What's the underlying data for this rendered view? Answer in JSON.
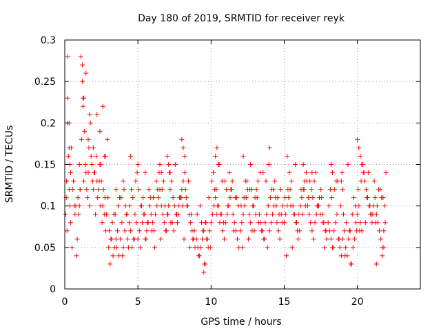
{
  "chart_data": {
    "type": "scatter",
    "title": "Day 180 of 2019, SRMTID for receiver reyk",
    "xlabel": "GPS time / hours",
    "ylabel": "SRMTID / TECUs",
    "xlim": [
      0,
      24.3
    ],
    "ylim": [
      0,
      0.3
    ],
    "x_ticks": [
      0,
      5,
      10,
      15,
      20
    ],
    "y_ticks": [
      0,
      0.05,
      0.1,
      0.15,
      0.2,
      0.25,
      0.3
    ],
    "x_tick_labels": [
      "0",
      "5",
      "10",
      "15",
      "20"
    ],
    "y_tick_labels": [
      "0",
      "0.05",
      "0.1",
      "0.15",
      "0.2",
      "0.25",
      "0.3"
    ],
    "grid": true,
    "marker": "plus",
    "marker_color": "#ff0000",
    "series": [
      {
        "x": [
          0.05,
          0.12,
          0.2,
          0.25,
          0.3,
          0.35,
          0.4,
          0.5,
          0.55,
          0.6,
          0.7,
          0.8,
          0.9,
          1.0,
          1.1,
          1.2,
          1.3,
          1.4,
          1.5,
          1.6,
          1.7,
          1.8,
          1.9,
          2.0,
          2.1,
          2.2,
          2.3,
          2.4,
          2.5,
          2.6,
          2.7,
          2.8,
          2.9,
          0.1,
          0.2,
          0.3,
          0.45,
          0.6,
          0.75,
          0.95,
          1.05,
          1.15,
          1.25,
          1.35,
          1.45,
          1.55,
          1.65,
          1.75,
          1.85,
          1.95,
          2.05,
          2.15,
          2.25,
          2.35,
          2.45,
          2.55,
          2.65,
          2.75,
          2.85,
          0.15,
          0.4,
          0.65,
          0.85,
          1.0,
          1.2,
          1.45,
          1.7,
          1.95,
          2.2,
          2.45,
          2.7,
          2.95,
          0.2,
          0.3,
          1.25,
          1.6,
          2.4,
          2.6,
          2.8,
          0.35,
          1.3,
          1.05,
          3.0,
          3.1,
          3.2,
          3.3,
          3.4,
          3.5,
          3.6,
          3.7,
          3.8,
          3.9,
          4.0,
          4.1,
          4.2,
          4.3,
          4.4,
          4.5,
          4.6,
          4.7,
          4.8,
          4.9,
          5.0,
          5.1,
          5.2,
          5.3,
          5.4,
          5.5,
          5.6,
          5.7,
          5.8,
          5.9,
          3.05,
          3.25,
          3.45,
          3.65,
          3.85,
          4.05,
          4.25,
          4.45,
          4.65,
          4.85,
          5.05,
          5.25,
          5.45,
          5.65,
          5.85,
          3.15,
          3.55,
          3.95,
          4.35,
          4.75,
          5.15,
          5.55,
          5.95,
          3.35,
          3.75,
          4.15,
          4.55,
          4.95,
          5.35,
          5.75,
          4.0,
          4.5,
          5.0,
          5.5,
          3.5,
          6.0,
          6.1,
          6.2,
          6.3,
          6.4,
          6.5,
          6.6,
          6.7,
          6.8,
          6.9,
          7.0,
          7.1,
          7.2,
          7.3,
          7.4,
          7.5,
          7.6,
          7.7,
          7.8,
          7.9,
          8.0,
          8.1,
          8.2,
          8.3,
          8.4,
          8.5,
          8.6,
          8.7,
          8.8,
          8.9,
          6.05,
          6.25,
          6.45,
          6.65,
          6.85,
          7.05,
          7.25,
          7.45,
          7.65,
          7.85,
          8.05,
          8.25,
          8.45,
          8.65,
          8.85,
          6.15,
          6.55,
          6.95,
          7.35,
          7.75,
          8.15,
          8.55,
          6.35,
          6.75,
          7.15,
          7.55,
          7.95,
          8.35,
          8.75,
          7.0,
          7.1,
          7.2,
          8.0,
          8.1,
          8.2,
          6.5,
          6.6,
          9.0,
          9.1,
          9.2,
          9.3,
          9.4,
          9.5,
          9.6,
          9.7,
          9.8,
          9.9,
          10.0,
          10.1,
          10.2,
          10.3,
          10.4,
          10.5,
          10.6,
          10.7,
          10.8,
          10.9,
          11.0,
          11.1,
          11.2,
          11.3,
          11.4,
          11.5,
          11.6,
          11.7,
          11.8,
          11.9,
          9.05,
          9.25,
          9.45,
          9.65,
          9.85,
          10.05,
          10.25,
          10.45,
          10.65,
          10.85,
          11.05,
          11.25,
          11.45,
          11.65,
          11.85,
          9.15,
          9.55,
          9.95,
          10.35,
          10.75,
          11.15,
          11.55,
          9.35,
          9.75,
          10.15,
          10.55,
          10.95,
          11.35,
          11.75,
          9.5,
          9.6,
          10.3,
          10.4,
          10.5,
          12.0,
          12.1,
          12.2,
          12.3,
          12.4,
          12.5,
          12.6,
          12.7,
          12.8,
          12.9,
          13.0,
          13.1,
          13.2,
          13.3,
          13.4,
          13.5,
          13.6,
          13.7,
          13.8,
          13.9,
          14.0,
          14.1,
          14.2,
          14.3,
          14.4,
          14.5,
          14.6,
          14.7,
          14.8,
          14.9,
          12.05,
          12.25,
          12.45,
          12.65,
          12.85,
          13.05,
          13.25,
          13.45,
          13.65,
          13.85,
          14.05,
          14.25,
          14.45,
          14.65,
          14.85,
          12.15,
          12.55,
          12.95,
          13.35,
          13.75,
          14.15,
          14.55,
          12.35,
          12.75,
          13.15,
          13.55,
          13.95,
          14.35,
          14.75,
          12.2,
          12.7,
          14.0,
          15.0,
          15.1,
          15.2,
          15.3,
          15.4,
          15.5,
          15.6,
          15.7,
          15.8,
          15.9,
          16.0,
          16.1,
          16.2,
          16.3,
          16.4,
          16.5,
          16.6,
          16.7,
          16.8,
          16.9,
          17.0,
          17.1,
          17.2,
          17.3,
          17.4,
          17.5,
          17.6,
          17.7,
          17.8,
          17.9,
          15.05,
          15.25,
          15.45,
          15.65,
          15.85,
          16.05,
          16.25,
          16.45,
          16.65,
          16.85,
          17.05,
          17.25,
          17.45,
          17.65,
          17.85,
          15.15,
          15.55,
          15.95,
          16.35,
          16.75,
          17.15,
          17.55,
          15.35,
          15.75,
          16.15,
          16.55,
          16.95,
          17.35,
          17.75,
          15.2,
          16.3,
          16.9,
          18.0,
          18.1,
          18.2,
          18.3,
          18.4,
          18.5,
          18.6,
          18.7,
          18.8,
          18.9,
          19.0,
          19.1,
          19.2,
          19.3,
          19.4,
          19.5,
          19.6,
          19.7,
          19.8,
          19.9,
          18.05,
          18.25,
          18.45,
          18.65,
          18.85,
          19.05,
          19.25,
          19.45,
          19.65,
          19.85,
          18.15,
          18.55,
          18.95,
          19.35,
          19.75,
          18.35,
          18.75,
          19.15,
          19.55,
          19.95,
          18.2,
          18.3,
          18.9,
          19.0,
          20.0,
          20.1,
          20.2,
          20.3,
          20.4,
          20.5,
          20.6,
          20.7,
          20.8,
          20.9,
          21.0,
          21.1,
          21.2,
          21.3,
          21.4,
          21.5,
          21.6,
          21.7,
          21.8,
          21.9,
          20.05,
          20.25,
          20.45,
          20.65,
          20.85,
          21.05,
          21.25,
          21.45,
          21.65,
          21.85,
          20.15,
          20.55,
          20.95,
          21.35,
          21.75,
          20.35,
          20.75,
          21.15,
          21.55,
          21.95,
          20.0,
          20.1,
          20.2,
          20.3,
          21.3,
          21.7,
          21.8
        ],
        "y": [
          0.09,
          0.13,
          0.28,
          0.16,
          0.12,
          0.1,
          0.14,
          0.05,
          0.12,
          0.13,
          0.09,
          0.04,
          0.11,
          0.1,
          0.28,
          0.25,
          0.23,
          0.15,
          0.12,
          0.18,
          0.1,
          0.16,
          0.13,
          0.14,
          0.09,
          0.21,
          0.12,
          0.15,
          0.13,
          0.1,
          0.09,
          0.07,
          0.18,
          0.11,
          0.23,
          0.2,
          0.17,
          0.13,
          0.1,
          0.09,
          0.12,
          0.18,
          0.22,
          0.19,
          0.14,
          0.11,
          0.17,
          0.2,
          0.15,
          0.12,
          0.14,
          0.16,
          0.11,
          0.13,
          0.1,
          0.08,
          0.12,
          0.11,
          0.09,
          0.07,
          0.08,
          0.1,
          0.06,
          0.15,
          0.27,
          0.26,
          0.21,
          0.17,
          0.13,
          0.15,
          0.16,
          0.11,
          0.2,
          0.17,
          0.23,
          0.14,
          0.19,
          0.22,
          0.16,
          0.15,
          0.13,
          0.12,
          0.05,
          0.03,
          0.06,
          0.04,
          0.05,
          0.06,
          0.07,
          0.04,
          0.06,
          0.08,
          0.05,
          0.07,
          0.09,
          0.06,
          0.08,
          0.07,
          0.05,
          0.06,
          0.09,
          0.08,
          0.06,
          0.07,
          0.1,
          0.08,
          0.09,
          0.06,
          0.07,
          0.08,
          0.1,
          0.09,
          0.07,
          0.08,
          0.09,
          0.1,
          0.11,
          0.12,
          0.09,
          0.1,
          0.11,
          0.13,
          0.12,
          0.1,
          0.09,
          0.08,
          0.11,
          0.06,
          0.05,
          0.04,
          0.05,
          0.06,
          0.05,
          0.06,
          0.07,
          0.09,
          0.11,
          0.1,
          0.12,
          0.14,
          0.11,
          0.12,
          0.13,
          0.16,
          0.15,
          0.14,
          0.12,
          0.08,
          0.07,
          0.09,
          0.1,
          0.11,
          0.12,
          0.1,
          0.09,
          0.08,
          0.07,
          0.09,
          0.1,
          0.12,
          0.13,
          0.11,
          0.1,
          0.09,
          0.08,
          0.1,
          0.11,
          0.12,
          0.13,
          0.14,
          0.11,
          0.1,
          0.09,
          0.08,
          0.07,
          0.06,
          0.05,
          0.11,
          0.13,
          0.14,
          0.12,
          0.1,
          0.09,
          0.08,
          0.07,
          0.09,
          0.11,
          0.1,
          0.12,
          0.13,
          0.09,
          0.07,
          0.05,
          0.06,
          0.07,
          0.08,
          0.09,
          0.06,
          0.05,
          0.12,
          0.13,
          0.14,
          0.15,
          0.11,
          0.1,
          0.06,
          0.16,
          0.15,
          0.14,
          0.18,
          0.17,
          0.16,
          0.15,
          0.14,
          0.06,
          0.05,
          0.04,
          0.05,
          0.06,
          0.07,
          0.08,
          0.06,
          0.05,
          0.07,
          0.08,
          0.09,
          0.1,
          0.11,
          0.09,
          0.1,
          0.08,
          0.09,
          0.07,
          0.06,
          0.08,
          0.09,
          0.1,
          0.11,
          0.12,
          0.09,
          0.08,
          0.07,
          0.06,
          0.05,
          0.09,
          0.1,
          0.07,
          0.08,
          0.11,
          0.13,
          0.12,
          0.1,
          0.09,
          0.08,
          0.12,
          0.14,
          0.13,
          0.11,
          0.1,
          0.04,
          0.03,
          0.05,
          0.12,
          0.13,
          0.1,
          0.07,
          0.08,
          0.06,
          0.14,
          0.15,
          0.13,
          0.12,
          0.11,
          0.02,
          0.03,
          0.16,
          0.17,
          0.15,
          0.07,
          0.08,
          0.09,
          0.1,
          0.11,
          0.12,
          0.09,
          0.08,
          0.07,
          0.1,
          0.11,
          0.12,
          0.13,
          0.09,
          0.08,
          0.07,
          0.06,
          0.08,
          0.09,
          0.1,
          0.07,
          0.08,
          0.09,
          0.1,
          0.11,
          0.08,
          0.07,
          0.06,
          0.09,
          0.1,
          0.1,
          0.11,
          0.13,
          0.12,
          0.1,
          0.09,
          0.08,
          0.07,
          0.06,
          0.05,
          0.11,
          0.12,
          0.1,
          0.09,
          0.08,
          0.05,
          0.06,
          0.07,
          0.14,
          0.13,
          0.12,
          0.11,
          0.13,
          0.12,
          0.11,
          0.14,
          0.15,
          0.13,
          0.12,
          0.16,
          0.15,
          0.17,
          0.08,
          0.09,
          0.1,
          0.11,
          0.12,
          0.13,
          0.1,
          0.09,
          0.08,
          0.07,
          0.09,
          0.1,
          0.11,
          0.12,
          0.13,
          0.14,
          0.1,
          0.09,
          0.08,
          0.07,
          0.06,
          0.08,
          0.09,
          0.1,
          0.11,
          0.12,
          0.09,
          0.08,
          0.07,
          0.06,
          0.11,
          0.12,
          0.1,
          0.09,
          0.08,
          0.07,
          0.09,
          0.1,
          0.11,
          0.12,
          0.13,
          0.1,
          0.09,
          0.08,
          0.07,
          0.04,
          0.05,
          0.06,
          0.12,
          0.13,
          0.14,
          0.11,
          0.14,
          0.15,
          0.12,
          0.13,
          0.11,
          0.1,
          0.05,
          0.16,
          0.15,
          0.14,
          0.08,
          0.07,
          0.06,
          0.05,
          0.07,
          0.08,
          0.09,
          0.06,
          0.05,
          0.04,
          0.06,
          0.07,
          0.05,
          0.04,
          0.06,
          0.07,
          0.03,
          0.05,
          0.06,
          0.08,
          0.1,
          0.11,
          0.12,
          0.13,
          0.1,
          0.09,
          0.08,
          0.07,
          0.09,
          0.1,
          0.12,
          0.13,
          0.14,
          0.15,
          0.11,
          0.05,
          0.06,
          0.04,
          0.03,
          0.07,
          0.15,
          0.14,
          0.13,
          0.12,
          0.18,
          0.17,
          0.16,
          0.15,
          0.14,
          0.13,
          0.12,
          0.11,
          0.1,
          0.09,
          0.08,
          0.1,
          0.11,
          0.09,
          0.08,
          0.07,
          0.06,
          0.05,
          0.07,
          0.08,
          0.12,
          0.13,
          0.14,
          0.11,
          0.1,
          0.09,
          0.08,
          0.12,
          0.11,
          0.1,
          0.07,
          0.08,
          0.09,
          0.1,
          0.11,
          0.15,
          0.14,
          0.13,
          0.12,
          0.14,
          0.09,
          0.1,
          0.08,
          0.07,
          0.03,
          0.04,
          0.05
        ]
      }
    ]
  }
}
